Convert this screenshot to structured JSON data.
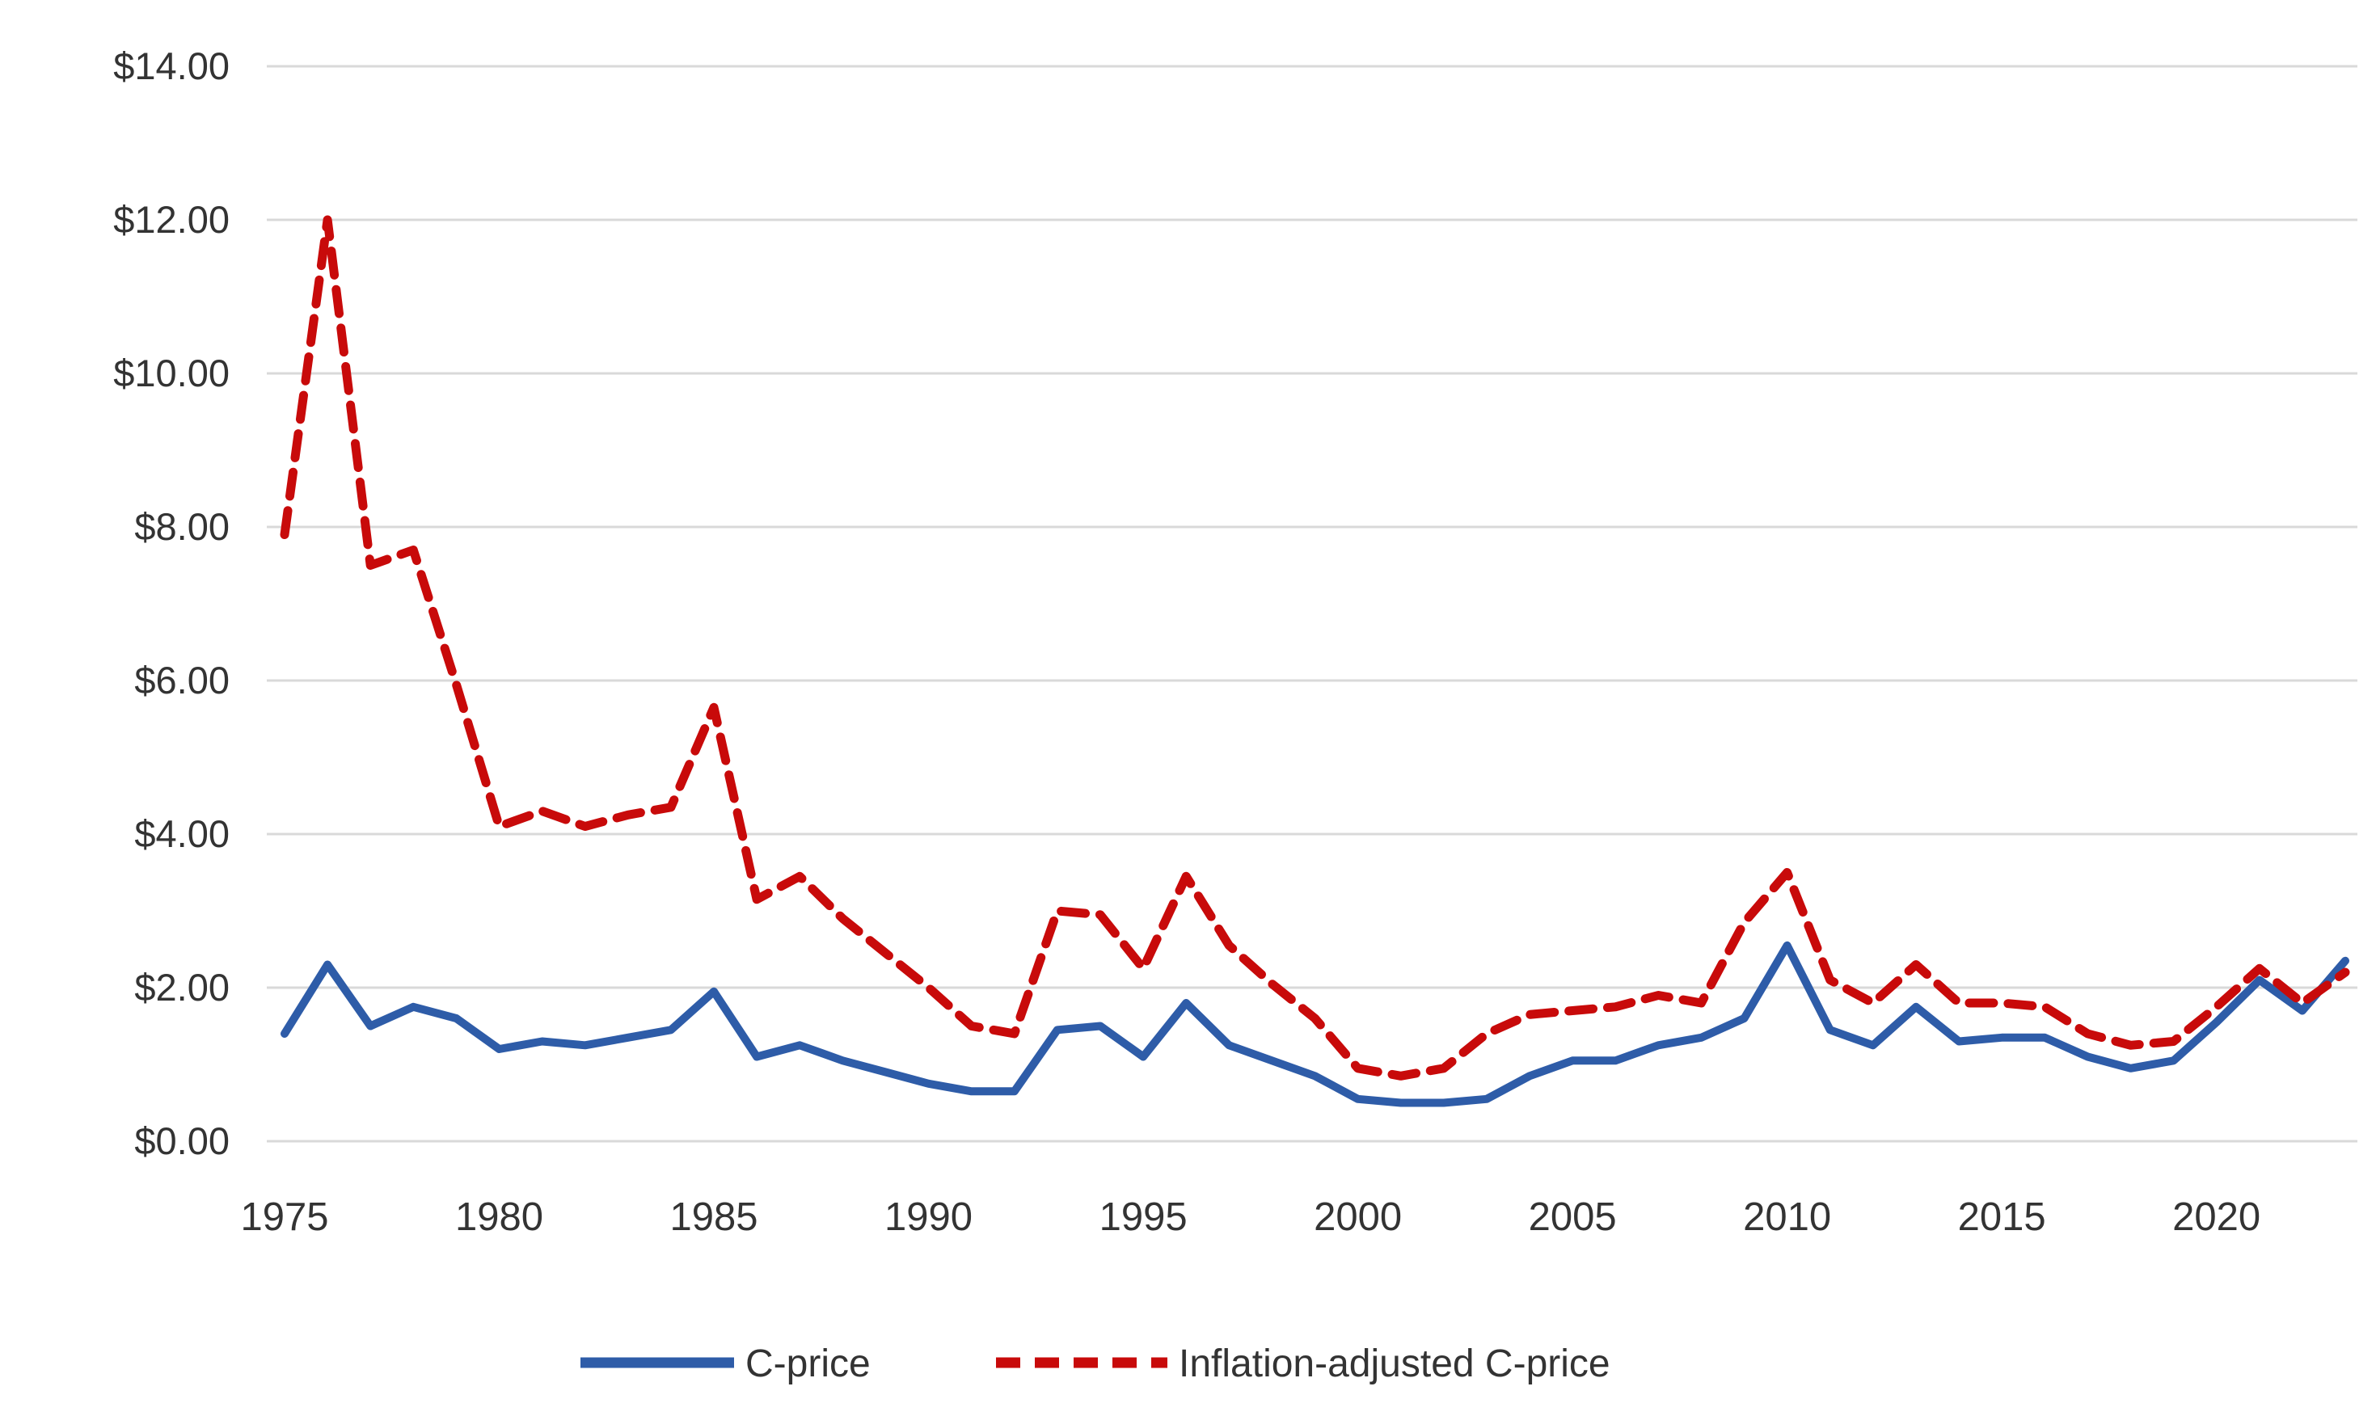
{
  "chart_data": {
    "type": "line",
    "title": "",
    "xlabel": "",
    "ylabel": "",
    "x": [
      1975,
      1976,
      1977,
      1978,
      1979,
      1980,
      1981,
      1982,
      1983,
      1984,
      1985,
      1986,
      1987,
      1988,
      1989,
      1990,
      1991,
      1992,
      1993,
      1994,
      1995,
      1996,
      1997,
      1998,
      1999,
      2000,
      2001,
      2002,
      2003,
      2004,
      2005,
      2006,
      2007,
      2008,
      2009,
      2010,
      2011,
      2012,
      2013,
      2014,
      2015,
      2016,
      2017,
      2018,
      2019,
      2020,
      2021,
      2022,
      2023
    ],
    "series": [
      {
        "name": "C-price",
        "style": "solid",
        "color": "#2E5CA8",
        "values": [
          1.4,
          2.3,
          1.5,
          1.75,
          1.6,
          1.2,
          1.3,
          1.25,
          1.35,
          1.45,
          1.95,
          1.1,
          1.25,
          1.05,
          0.9,
          0.75,
          0.65,
          0.65,
          1.45,
          1.5,
          1.1,
          1.8,
          1.25,
          1.05,
          0.85,
          0.55,
          0.5,
          0.5,
          0.55,
          0.85,
          1.05,
          1.05,
          1.25,
          1.35,
          1.6,
          2.55,
          1.45,
          1.25,
          1.75,
          1.3,
          1.35,
          1.35,
          1.1,
          0.95,
          1.05,
          1.55,
          2.1,
          1.7,
          2.35
        ]
      },
      {
        "name": "Inflation-adjusted C-price",
        "style": "dashed",
        "color": "#C80A0A",
        "values": [
          7.9,
          12.0,
          7.5,
          7.7,
          5.95,
          4.1,
          4.3,
          4.1,
          4.25,
          4.35,
          5.65,
          3.15,
          3.45,
          2.9,
          2.45,
          2.0,
          1.5,
          1.4,
          3.0,
          2.95,
          2.25,
          3.45,
          2.55,
          2.05,
          1.6,
          0.95,
          0.85,
          0.95,
          1.4,
          1.65,
          1.7,
          1.75,
          1.9,
          1.8,
          2.85,
          3.5,
          2.1,
          1.8,
          2.3,
          1.8,
          1.8,
          1.75,
          1.4,
          1.25,
          1.3,
          1.75,
          2.25,
          1.8,
          2.2
        ]
      }
    ],
    "ylim": [
      0,
      14
    ],
    "y_ticks": [
      {
        "value": 0,
        "label": "$0.00"
      },
      {
        "value": 2,
        "label": "$2.00"
      },
      {
        "value": 4,
        "label": "$4.00"
      },
      {
        "value": 6,
        "label": "$6.00"
      },
      {
        "value": 8,
        "label": "$8.00"
      },
      {
        "value": 10,
        "label": "$10.00"
      },
      {
        "value": 12,
        "label": "$12.00"
      },
      {
        "value": 14,
        "label": "$14.00"
      }
    ],
    "x_ticks": [
      "1975",
      "1980",
      "1985",
      "1990",
      "1995",
      "2000",
      "2005",
      "2010",
      "2015",
      "2020"
    ],
    "grid": "horizontal",
    "legend_position": "bottom"
  },
  "legend": {
    "cprice_label": "C-price",
    "inflation_label": "Inflation-adjusted C-price"
  },
  "colors": {
    "cprice": "#2E5CA8",
    "inflation": "#C80A0A",
    "gridline": "#D9D9D9",
    "text": "#333333",
    "background": "#FFFFFF"
  }
}
